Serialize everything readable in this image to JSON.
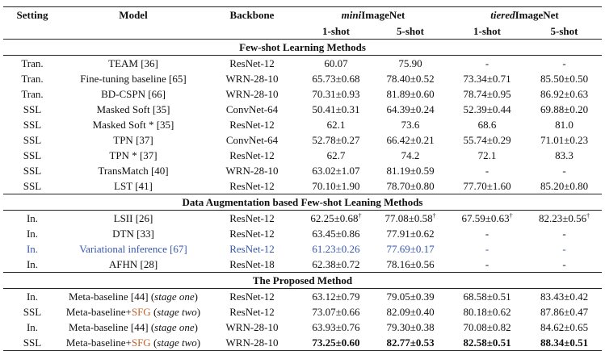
{
  "header": {
    "setting": "Setting",
    "model": "Model",
    "backbone": "Backbone",
    "mini_prefix": "mini",
    "mini_suffix": "ImageNet",
    "tiered_prefix": "tiered",
    "tiered_suffix": "ImageNet",
    "shot1": "1-shot",
    "shot5": "5-shot"
  },
  "sections": [
    {
      "title": "Few-shot Learning Methods",
      "rows": [
        {
          "setting": "Tran.",
          "model": [
            {
              "text": "TEAM [36]"
            }
          ],
          "backbone": "ResNet-12",
          "values": [
            {
              "v": "60.07"
            },
            {
              "v": "75.90"
            },
            {
              "v": "-"
            },
            {
              "v": "-"
            }
          ]
        },
        {
          "setting": "Tran.",
          "model": [
            {
              "text": "Fine-tuning baseline [65]"
            }
          ],
          "backbone": "WRN-28-10",
          "values": [
            {
              "v": "65.73±0.68"
            },
            {
              "v": "78.40±0.52"
            },
            {
              "v": "73.34±0.71"
            },
            {
              "v": "85.50±0.50"
            }
          ]
        },
        {
          "setting": "Tran.",
          "model": [
            {
              "text": "BD-CSPN [66]"
            }
          ],
          "backbone": "WRN-28-10",
          "values": [
            {
              "v": "70.31±0.93"
            },
            {
              "v": "81.89±0.60"
            },
            {
              "v": "78.74±0.95"
            },
            {
              "v": "86.92±0.63"
            }
          ]
        },
        {
          "setting": "SSL",
          "model": [
            {
              "text": "Masked Soft [35]"
            }
          ],
          "backbone": "ConvNet-64",
          "values": [
            {
              "v": "50.41±0.31"
            },
            {
              "v": "64.39±0.24"
            },
            {
              "v": "52.39±0.44"
            },
            {
              "v": "69.88±0.20"
            }
          ]
        },
        {
          "setting": "SSL",
          "model": [
            {
              "text": "Masked Soft * [35]"
            }
          ],
          "backbone": "ResNet-12",
          "values": [
            {
              "v": "62.1"
            },
            {
              "v": "73.6"
            },
            {
              "v": "68.6"
            },
            {
              "v": "81.0"
            }
          ]
        },
        {
          "setting": "SSL",
          "model": [
            {
              "text": "TPN [37]"
            }
          ],
          "backbone": "ConvNet-64",
          "values": [
            {
              "v": "52.78±0.27"
            },
            {
              "v": "66.42±0.21"
            },
            {
              "v": "55.74±0.29"
            },
            {
              "v": "71.01±0.23"
            }
          ]
        },
        {
          "setting": "SSL",
          "model": [
            {
              "text": "TPN * [37]"
            }
          ],
          "backbone": "ResNet-12",
          "values": [
            {
              "v": "62.7"
            },
            {
              "v": "74.2"
            },
            {
              "v": "72.1"
            },
            {
              "v": "83.3"
            }
          ]
        },
        {
          "setting": "SSL",
          "model": [
            {
              "text": "TransMatch [40]"
            }
          ],
          "backbone": "WRN-28-10",
          "values": [
            {
              "v": "63.02±1.07"
            },
            {
              "v": "81.19±0.59"
            },
            {
              "v": "-"
            },
            {
              "v": "-"
            }
          ]
        },
        {
          "setting": "SSL",
          "model": [
            {
              "text": "LST [41]"
            }
          ],
          "backbone": "ResNet-12",
          "values": [
            {
              "v": "70.10±1.90"
            },
            {
              "v": "78.70±0.80"
            },
            {
              "v": "77.70±1.60"
            },
            {
              "v": "85.20±0.80"
            }
          ]
        }
      ]
    },
    {
      "title": "Data Augmentation based Few-shot Leaning Methods",
      "rows": [
        {
          "setting": "In.",
          "model": [
            {
              "text": "LSII [26]"
            }
          ],
          "backbone": "ResNet-12",
          "values": [
            {
              "v": "62.25±0.68",
              "sup": "†"
            },
            {
              "v": "77.08±0.58",
              "sup": "†"
            },
            {
              "v": "67.59±0.63",
              "sup": "†"
            },
            {
              "v": "82.23±0.56",
              "sup": "†"
            }
          ]
        },
        {
          "setting": "In.",
          "model": [
            {
              "text": "DTN [33]"
            }
          ],
          "backbone": "ResNet-12",
          "values": [
            {
              "v": "63.45±0.86"
            },
            {
              "v": "77.91±0.62"
            },
            {
              "v": "-"
            },
            {
              "v": "-"
            }
          ]
        },
        {
          "setting": "In.",
          "model": [
            {
              "text": "Variational inference [67]"
            }
          ],
          "backbone": "ResNet-12",
          "highlight": "#3656b0",
          "values": [
            {
              "v": "61.23±0.26"
            },
            {
              "v": "77.69±0.17"
            },
            {
              "v": "-"
            },
            {
              "v": "-"
            }
          ]
        },
        {
          "setting": "In.",
          "model": [
            {
              "text": "AFHN [28]"
            }
          ],
          "backbone": "ResNet-18",
          "values": [
            {
              "v": "62.38±0.72"
            },
            {
              "v": "78.16±0.56"
            },
            {
              "v": "-"
            },
            {
              "v": "-"
            }
          ]
        }
      ]
    },
    {
      "title": "The Proposed Method",
      "rows": [
        {
          "setting": "In.",
          "model": [
            {
              "text": "Meta-baseline [44] ("
            },
            {
              "text": "stage one",
              "style": "it"
            },
            {
              "text": ")"
            }
          ],
          "backbone": "ResNet-12",
          "values": [
            {
              "v": "63.12±0.79"
            },
            {
              "v": "79.05±0.39"
            },
            {
              "v": "68.58±0.51"
            },
            {
              "v": "83.43±0.42"
            }
          ]
        },
        {
          "setting": "SSL",
          "model": [
            {
              "text": "Meta-baseline+"
            },
            {
              "text": "SFG",
              "style": "sfg"
            },
            {
              "text": " ("
            },
            {
              "text": "stage two",
              "style": "it"
            },
            {
              "text": ")"
            }
          ],
          "backbone": "ResNet-12",
          "values": [
            {
              "v": "73.07±0.66"
            },
            {
              "v": "82.09±0.40"
            },
            {
              "v": "80.18±0.62"
            },
            {
              "v": "87.86±0.47"
            }
          ]
        },
        {
          "setting": "In.",
          "model": [
            {
              "text": "Meta-baseline [44] ("
            },
            {
              "text": "stage one",
              "style": "it"
            },
            {
              "text": ")"
            }
          ],
          "backbone": "WRN-28-10",
          "values": [
            {
              "v": "63.93±0.76"
            },
            {
              "v": "79.30±0.38"
            },
            {
              "v": "70.08±0.82"
            },
            {
              "v": "84.62±0.65"
            }
          ]
        },
        {
          "setting": "SSL",
          "model": [
            {
              "text": "Meta-baseline+"
            },
            {
              "text": "SFG",
              "style": "sfg"
            },
            {
              "text": " ("
            },
            {
              "text": "stage two",
              "style": "it"
            },
            {
              "text": ")"
            }
          ],
          "backbone": "WRN-28-10",
          "values": [
            {
              "v": "73.25±0.60",
              "bold": true
            },
            {
              "v": "82.77±0.53",
              "bold": true
            },
            {
              "v": "82.58±0.51",
              "bold": true
            },
            {
              "v": "88.34±0.51",
              "bold": true
            }
          ]
        }
      ]
    }
  ],
  "colors": {
    "highlight_blue": "#3656b0",
    "sfg_orange": "#c0622b"
  }
}
